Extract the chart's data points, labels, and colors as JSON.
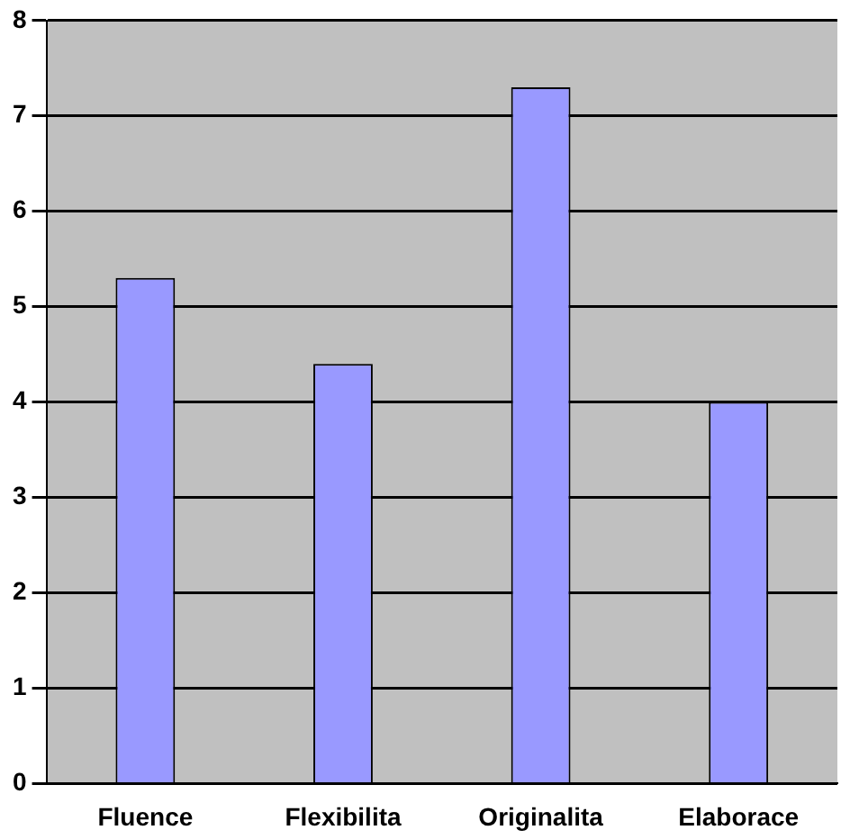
{
  "chart_data": {
    "type": "bar",
    "categories": [
      "Fluence",
      "Flexibilita",
      "Originalita",
      "Elaborace"
    ],
    "values": [
      5.3,
      4.4,
      7.3,
      4.0
    ],
    "color": "#9999ff",
    "ylim": [
      0,
      8
    ],
    "yticks": [
      0,
      1,
      2,
      3,
      4,
      5,
      6,
      7,
      8
    ],
    "grid": "y",
    "legend": false
  }
}
